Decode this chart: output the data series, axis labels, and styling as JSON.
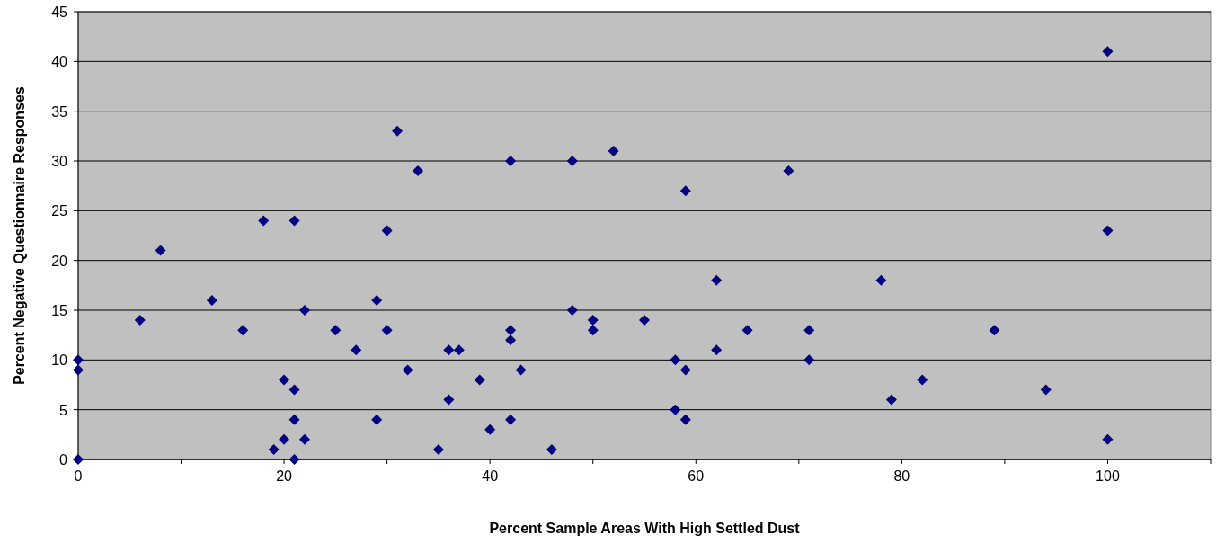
{
  "chart_data": {
    "type": "scatter",
    "xlabel": "Percent Sample Areas With High Settled Dust",
    "ylabel": "Percent Negative Questionnaire Responses",
    "x": [
      0,
      0,
      0,
      6,
      8,
      13,
      16,
      18,
      19,
      20,
      20,
      21,
      21,
      21,
      21,
      22,
      22,
      25,
      27,
      29,
      29,
      30,
      30,
      31,
      32,
      33,
      35,
      36,
      36,
      37,
      39,
      40,
      42,
      42,
      42,
      42,
      43,
      46,
      48,
      48,
      50,
      50,
      52,
      55,
      58,
      58,
      59,
      59,
      59,
      62,
      62,
      65,
      69,
      71,
      71,
      78,
      79,
      82,
      89,
      94,
      100,
      100,
      100
    ],
    "series": [
      {
        "color": "#000080",
        "values": [
          0,
          10,
          9,
          14,
          21,
          16,
          13,
          24,
          1,
          8,
          2,
          24,
          7,
          4,
          0,
          15,
          2,
          13,
          11,
          16,
          4,
          23,
          13,
          33,
          9,
          29,
          1,
          11,
          6,
          11,
          8,
          3,
          30,
          13,
          12,
          4,
          9,
          1,
          30,
          15,
          14,
          13,
          31,
          14,
          10,
          5,
          27,
          9,
          4,
          18,
          11,
          13,
          29,
          13,
          10,
          18,
          6,
          8,
          13,
          7,
          41,
          23,
          2
        ]
      }
    ],
    "xlim": [
      0,
      110
    ],
    "xticks": [
      0,
      {
        "value": 10,
        "label": null
      },
      20,
      {
        "value": 30,
        "label": null
      },
      40,
      {
        "value": 50,
        "label": null
      },
      60,
      {
        "value": 70,
        "label": null
      },
      80,
      {
        "value": 90,
        "label": null
      },
      100,
      {
        "value": 110,
        "label": null
      }
    ],
    "ylim": [
      0,
      45
    ],
    "yticks": [
      0,
      5,
      10,
      15,
      20,
      25,
      30,
      35,
      40,
      45
    ],
    "grid": "y",
    "marker": "diamond"
  }
}
